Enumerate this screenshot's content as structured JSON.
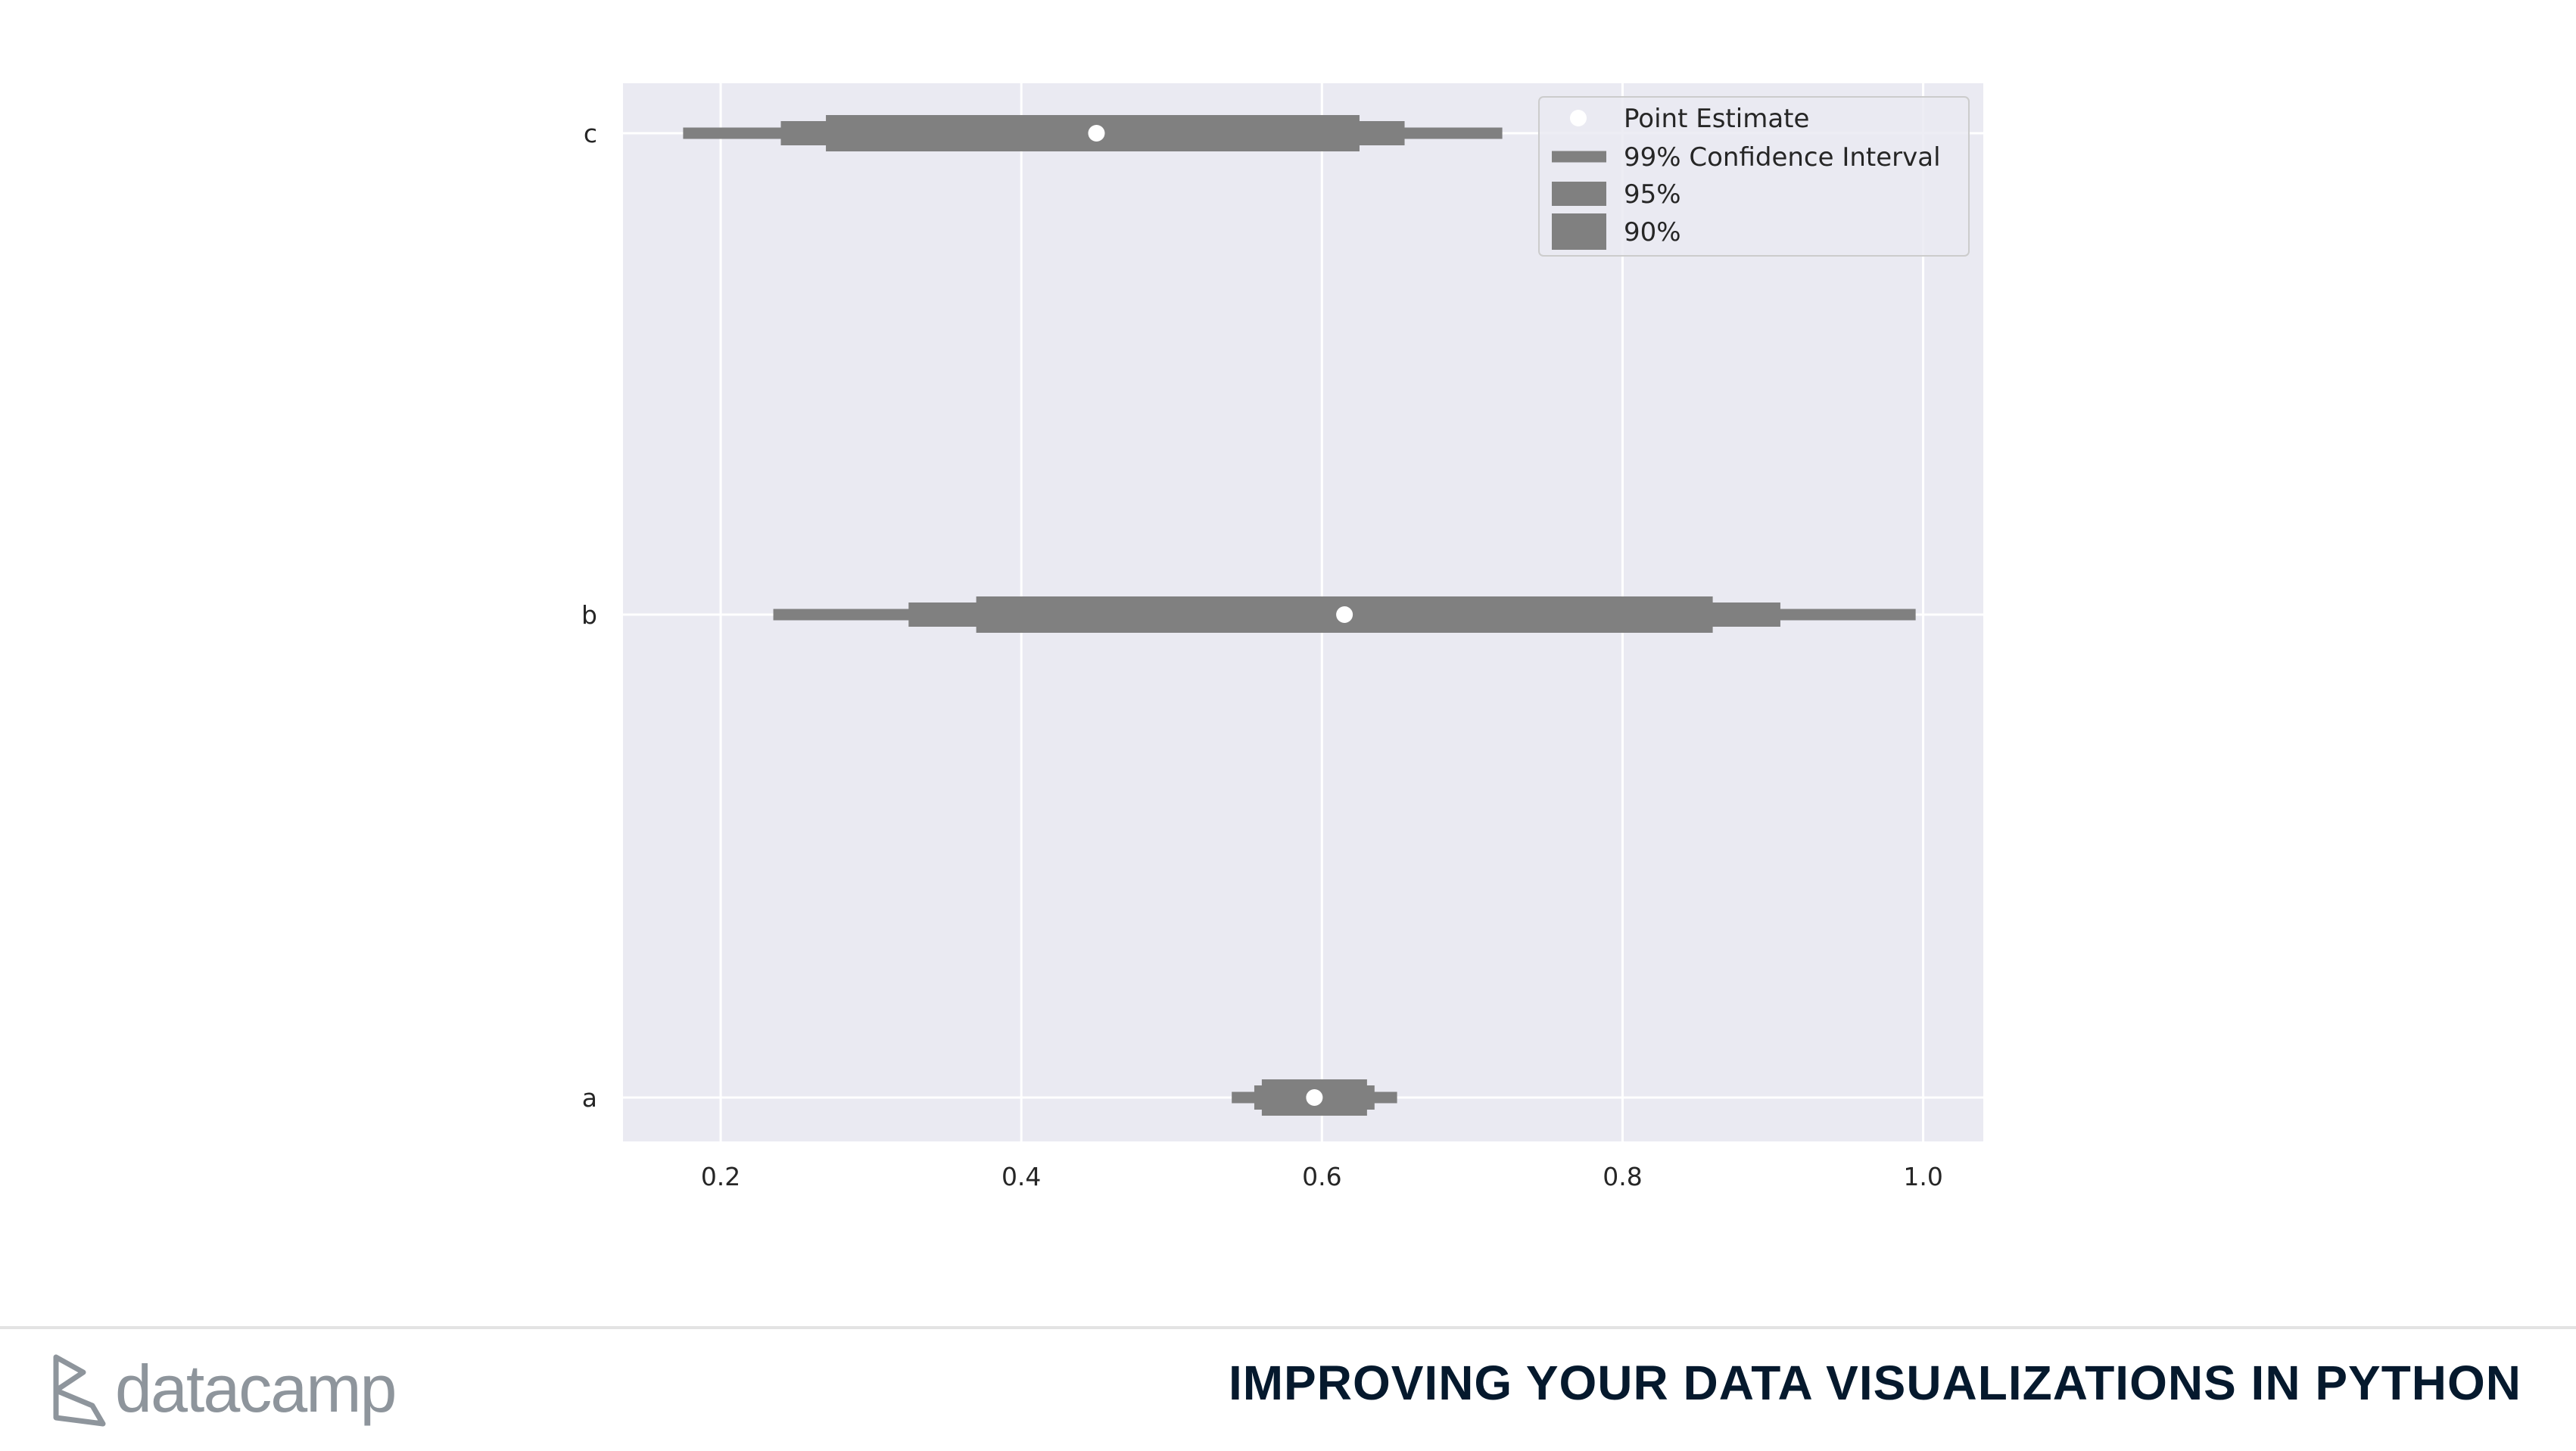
{
  "chart_data": {
    "type": "interval",
    "categories": [
      "a",
      "b",
      "c"
    ],
    "xlim": [
      0.135,
      1.04
    ],
    "xticks": [
      0.2,
      0.4,
      0.6,
      0.8,
      1.0
    ],
    "xtick_labels": [
      "0.2",
      "0.4",
      "0.6",
      "0.8",
      "1.0"
    ],
    "grid": true,
    "legend_position": "top-right",
    "legend": [
      {
        "label": "Point Estimate",
        "kind": "point"
      },
      {
        "label": "99% Confidence Interval",
        "kind": "ci99"
      },
      {
        "label": "95%",
        "kind": "ci95"
      },
      {
        "label": "90%",
        "kind": "ci90"
      }
    ],
    "series": [
      {
        "category": "c",
        "estimate": 0.45,
        "ci99": [
          0.175,
          0.72
        ],
        "ci95": [
          0.24,
          0.655
        ],
        "ci90": [
          0.27,
          0.625
        ]
      },
      {
        "category": "b",
        "estimate": 0.615,
        "ci99": [
          0.235,
          0.995
        ],
        "ci95": [
          0.325,
          0.905
        ],
        "ci90": [
          0.37,
          0.86
        ]
      },
      {
        "category": "a",
        "estimate": 0.595,
        "ci99": [
          0.54,
          0.65
        ],
        "ci95": [
          0.555,
          0.635
        ],
        "ci90": [
          0.56,
          0.63
        ]
      }
    ],
    "colors": {
      "plot_bg": "#eaeaf2",
      "grid": "#ffffff",
      "interval": "#808080",
      "point": "#ffffff"
    }
  },
  "footer": {
    "logo_text": "datacamp",
    "course_title": "IMPROVING YOUR DATA VISUALIZATIONS IN PYTHON"
  }
}
